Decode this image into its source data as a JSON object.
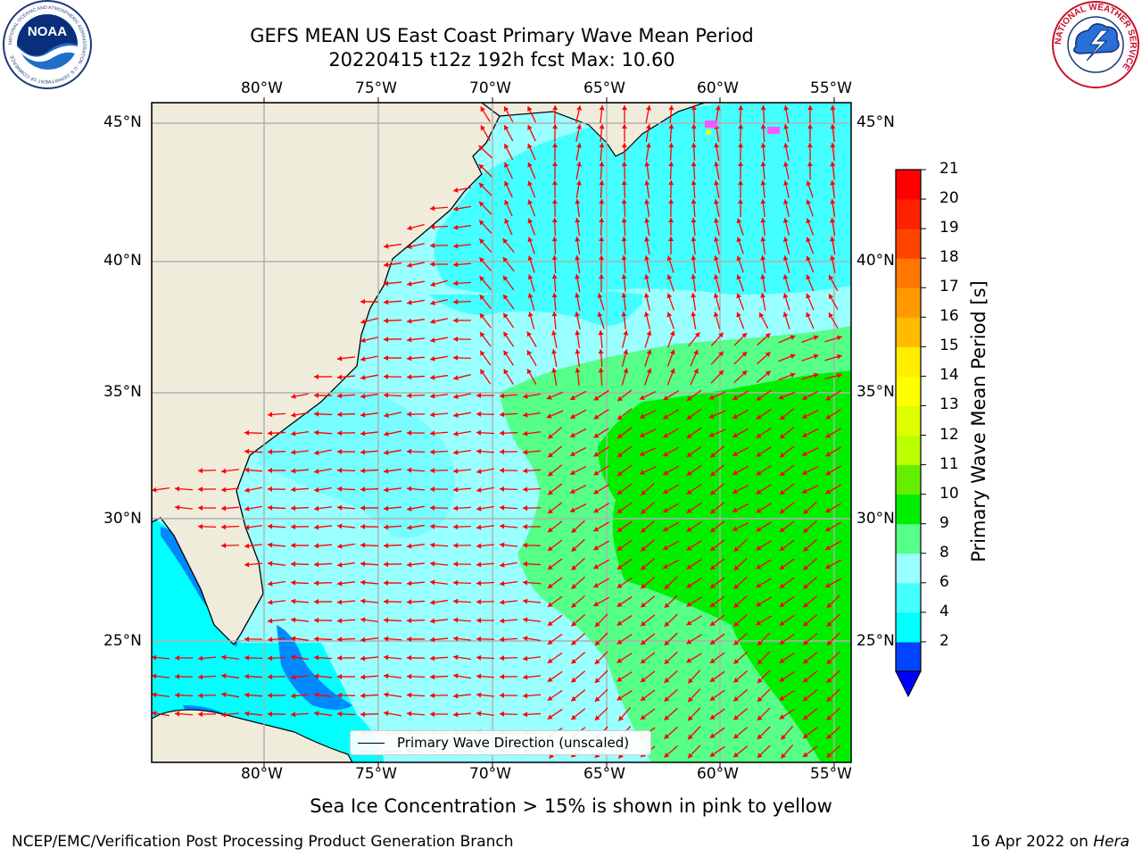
{
  "header": {
    "title_line1": "GEFS MEAN US East Coast Primary Wave Mean Period",
    "title_line2": "20220415 t12z 192h fcst   Max: 10.60"
  },
  "logos": {
    "left": {
      "name": "NOAA",
      "ring_text": "NATIONAL OCEANIC AND ATMOSPHERIC ADMINISTRATION · U.S. DEPARTMENT OF COMMERCE"
    },
    "right": {
      "name": "NATIONAL WEATHER SERVICE"
    }
  },
  "map": {
    "lon_labels": [
      "80°W",
      "75°W",
      "70°W",
      "65°W",
      "60°W",
      "55°W"
    ],
    "lat_labels": [
      "45°N",
      "40°N",
      "35°N",
      "30°N",
      "25°N"
    ],
    "land_color": "#efecdc",
    "gridline_color": "#b0b0b0",
    "arrow_color": "#ff0000",
    "legend_text": "Primary Wave Direction (unscaled)"
  },
  "colorbar": {
    "label": "Primary Wave Mean Period [s]",
    "ticks": [
      "21",
      "20",
      "19",
      "18",
      "17",
      "16",
      "15",
      "14",
      "13",
      "12",
      "11",
      "10",
      "9",
      "8",
      "6",
      "4",
      "2"
    ],
    "colors_bottom_to_top": [
      "#0044ff",
      "#00ffff",
      "#44ffff",
      "#99ffff",
      "#55ff88",
      "#00ee00",
      "#66ee00",
      "#bbff00",
      "#ddff00",
      "#ffff00",
      "#ffee00",
      "#ffbb00",
      "#ff9900",
      "#ff7700",
      "#ff4400",
      "#ff2200",
      "#ff0000"
    ],
    "extend_color": "#0000ff"
  },
  "notes": {
    "sea_ice": "Sea Ice Concentration > 15% is shown in pink to yellow"
  },
  "footer": {
    "left": "NCEP/EMC/Verification Post Processing Product Generation Branch",
    "date": "16 Apr 2022 on",
    "host": "Hera"
  }
}
